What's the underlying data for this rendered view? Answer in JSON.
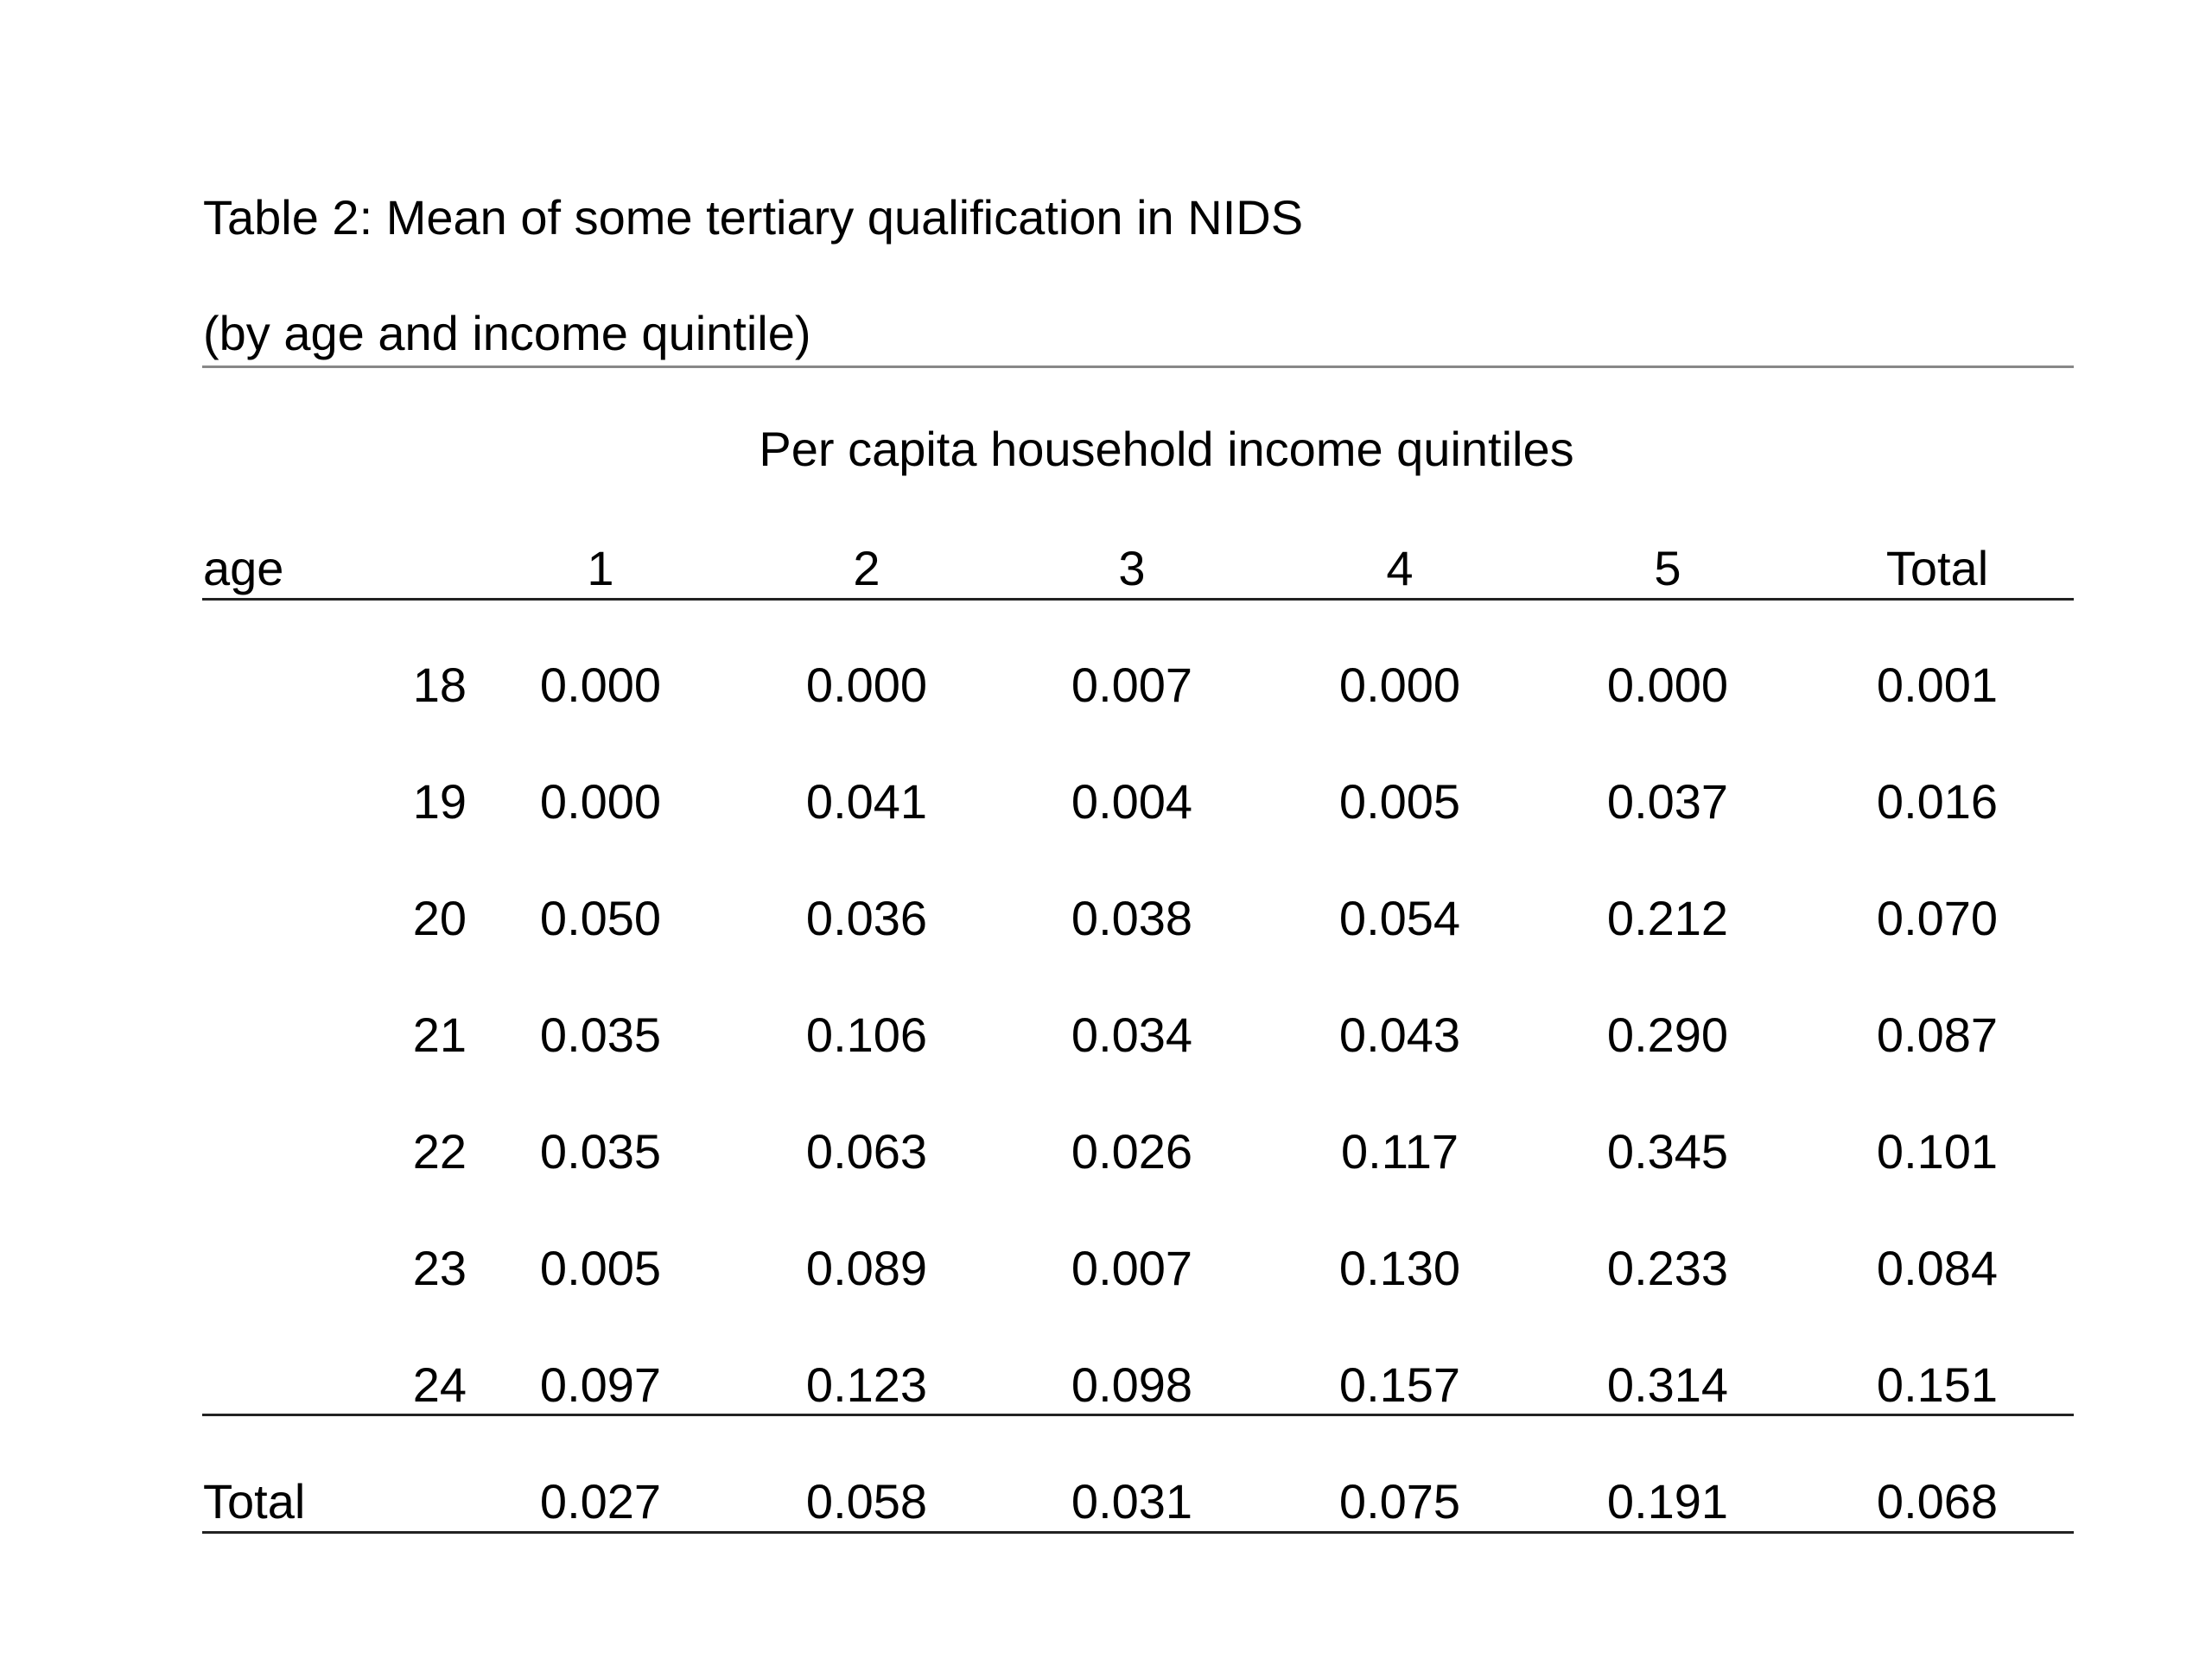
{
  "title": "Table 2: Mean of some tertiary qualification in NIDS",
  "subtitle": "(by age and income quintile)",
  "spanner": "Per capita household income quintiles",
  "header": {
    "age": "age",
    "cols": [
      "1",
      "2",
      "3",
      "4",
      "5",
      "Total"
    ]
  },
  "rows": [
    {
      "age": "18",
      "values": [
        "0.000",
        "0.000",
        "0.007",
        "0.000",
        "0.000",
        "0.001"
      ]
    },
    {
      "age": "19",
      "values": [
        "0.000",
        "0.041",
        "0.004",
        "0.005",
        "0.037",
        "0.016"
      ]
    },
    {
      "age": "20",
      "values": [
        "0.050",
        "0.036",
        "0.038",
        "0.054",
        "0.212",
        "0.070"
      ]
    },
    {
      "age": "21",
      "values": [
        "0.035",
        "0.106",
        "0.034",
        "0.043",
        "0.290",
        "0.087"
      ]
    },
    {
      "age": "22",
      "values": [
        "0.035",
        "0.063",
        "0.026",
        "0.117",
        "0.345",
        "0.101"
      ]
    },
    {
      "age": "23",
      "values": [
        "0.005",
        "0.089",
        "0.007",
        "0.130",
        "0.233",
        "0.084"
      ]
    },
    {
      "age": "24",
      "values": [
        "0.097",
        "0.123",
        "0.098",
        "0.157",
        "0.314",
        "0.151"
      ]
    }
  ],
  "total_row": {
    "label": "Total",
    "values": [
      "0.027",
      "0.058",
      "0.031",
      "0.075",
      "0.191",
      "0.068"
    ]
  }
}
